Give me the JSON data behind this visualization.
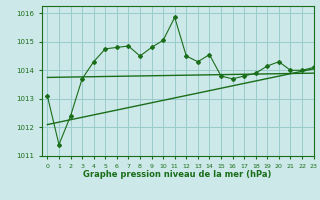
{
  "main_x": [
    0,
    1,
    2,
    3,
    4,
    5,
    6,
    7,
    8,
    9,
    10,
    11,
    12,
    13,
    14,
    15,
    16,
    17,
    18,
    19,
    20,
    21,
    22,
    23
  ],
  "main_y": [
    1013.1,
    1011.4,
    1012.4,
    1013.7,
    1014.3,
    1014.75,
    1014.8,
    1014.85,
    1014.5,
    1014.8,
    1015.05,
    1015.85,
    1014.5,
    1014.3,
    1014.55,
    1013.8,
    1013.7,
    1013.8,
    1013.9,
    1014.15,
    1014.3,
    1014.0,
    1014.0,
    1014.1
  ],
  "trend1_x": [
    0,
    23
  ],
  "trend1_y": [
    1013.75,
    1013.9
  ],
  "trend2_x": [
    0,
    23
  ],
  "trend2_y": [
    1012.1,
    1014.05
  ],
  "line_color": "#1a6e1a",
  "bg_color": "#cce8e8",
  "grid_color": "#99cccc",
  "xlabel": "Graphe pression niveau de la mer (hPa)",
  "ylim": [
    1011.0,
    1016.25
  ],
  "xlim": [
    -0.5,
    23
  ],
  "yticks": [
    1011,
    1012,
    1013,
    1014,
    1015,
    1016
  ],
  "xticks": [
    0,
    1,
    2,
    3,
    4,
    5,
    6,
    7,
    8,
    9,
    10,
    11,
    12,
    13,
    14,
    15,
    16,
    17,
    18,
    19,
    20,
    21,
    22,
    23
  ]
}
